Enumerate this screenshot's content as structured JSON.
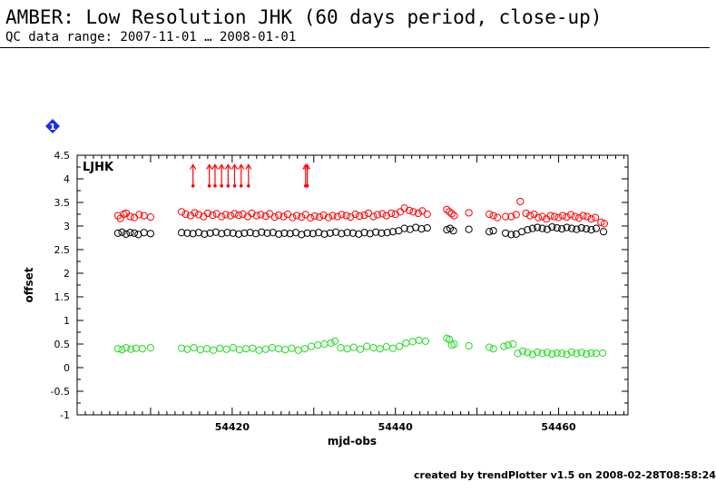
{
  "header": {
    "title": "AMBER: Low Resolution JHK (60 days period, close-up)",
    "subtitle": "QC data range: 2007-11-01 … 2008-01-01"
  },
  "badge": {
    "label": "1",
    "icon": "diamond-icon",
    "color": "#1a2ee8"
  },
  "footer": {
    "text": "created by trendPlotter v1.5 on 2008-02-28T08:58:24"
  },
  "chart_data": {
    "type": "scatter",
    "panel_label": "LJHK",
    "xlabel": "mjd-obs",
    "ylabel": "offset",
    "xlim": [
      54401,
      54468.5
    ],
    "ylim": [
      -1,
      4.5
    ],
    "xticks": [
      54420,
      54440,
      54460
    ],
    "yticks": [
      "-1",
      "-0.5",
      "0",
      "0.5",
      "1",
      "1.5",
      "2",
      "2.5",
      "3",
      "3.5",
      "4",
      "4.5"
    ],
    "grid": false,
    "series": [
      {
        "color": "#ff0000",
        "x": [
          54406.0,
          54406.3,
          54406.7,
          54407.0,
          54407.5,
          54408.0,
          54408.6,
          54409.2,
          54410.0,
          54413.8,
          54414.3,
          54414.9,
          54415.4,
          54415.9,
          54416.5,
          54417.0,
          54417.6,
          54418.1,
          54418.7,
          54419.2,
          54419.8,
          54420.3,
          54420.8,
          54421.3,
          54421.9,
          54422.4,
          54423.0,
          54423.5,
          54424.1,
          54424.6,
          54425.2,
          54425.7,
          54426.3,
          54426.8,
          54427.4,
          54427.9,
          54428.5,
          54429.0,
          54429.6,
          54430.1,
          54430.7,
          54431.2,
          54431.8,
          54432.3,
          54432.9,
          54433.4,
          54434.0,
          54434.5,
          54435.1,
          54435.6,
          54436.2,
          54436.7,
          54437.3,
          54437.8,
          54438.4,
          54438.9,
          54439.5,
          54440.0,
          54440.6,
          54441.1,
          54441.7,
          54442.2,
          54442.8,
          54443.3,
          54443.9,
          54446.3,
          54446.6,
          54446.9,
          54447.2,
          54449.0,
          54451.5,
          54452.0,
          54452.5,
          54453.5,
          54454.2,
          54454.8,
          54455.3,
          54456.0,
          54456.5,
          54457.0,
          54457.5,
          54458.0,
          54458.5,
          54459.0,
          54459.5,
          54460.0,
          54460.5,
          54461.0,
          54461.5,
          54462.0,
          54462.5,
          54463.0,
          54463.5,
          54464.0,
          54464.5,
          54465.2,
          54465.6
        ],
        "y": [
          3.22,
          3.16,
          3.25,
          3.27,
          3.2,
          3.18,
          3.24,
          3.22,
          3.19,
          3.3,
          3.25,
          3.22,
          3.28,
          3.24,
          3.2,
          3.27,
          3.23,
          3.26,
          3.2,
          3.24,
          3.22,
          3.26,
          3.23,
          3.25,
          3.2,
          3.27,
          3.22,
          3.24,
          3.21,
          3.26,
          3.19,
          3.23,
          3.2,
          3.25,
          3.18,
          3.22,
          3.19,
          3.24,
          3.17,
          3.21,
          3.19,
          3.23,
          3.18,
          3.22,
          3.2,
          3.24,
          3.22,
          3.19,
          3.25,
          3.21,
          3.23,
          3.27,
          3.2,
          3.24,
          3.26,
          3.22,
          3.27,
          3.25,
          3.3,
          3.38,
          3.33,
          3.3,
          3.27,
          3.32,
          3.25,
          3.35,
          3.3,
          3.26,
          3.22,
          3.28,
          3.25,
          3.22,
          3.18,
          3.2,
          3.2,
          3.24,
          3.52,
          3.27,
          3.22,
          3.25,
          3.18,
          3.2,
          3.15,
          3.22,
          3.2,
          3.18,
          3.22,
          3.19,
          3.24,
          3.2,
          3.17,
          3.22,
          3.2,
          3.15,
          3.18,
          3.08,
          3.05
        ]
      },
      {
        "color": "#000000",
        "x": [
          54406.0,
          54406.5,
          54407.0,
          54407.5,
          54408.0,
          54408.5,
          54409.2,
          54410.0,
          54413.8,
          54414.5,
          54415.2,
          54415.9,
          54416.6,
          54417.3,
          54418.0,
          54418.7,
          54419.4,
          54420.1,
          54420.8,
          54421.5,
          54422.2,
          54422.9,
          54423.6,
          54424.3,
          54425.0,
          54425.7,
          54426.4,
          54427.1,
          54427.8,
          54428.5,
          54429.2,
          54429.9,
          54430.6,
          54431.3,
          54432.0,
          54432.7,
          54433.4,
          54434.1,
          54434.8,
          54435.5,
          54436.2,
          54436.9,
          54437.6,
          54438.3,
          54439.0,
          54439.7,
          54440.4,
          54441.1,
          54441.8,
          54442.5,
          54443.2,
          54443.9,
          54446.3,
          54446.7,
          54447.1,
          54449.0,
          54451.5,
          54452.0,
          54453.5,
          54454.2,
          54454.8,
          54455.5,
          54456.2,
          54456.8,
          54457.4,
          54458.0,
          54458.6,
          54459.2,
          54459.8,
          54460.4,
          54461.0,
          54461.6,
          54462.2,
          54462.8,
          54463.4,
          54464.0,
          54464.6,
          54465.5
        ],
        "y": [
          2.85,
          2.87,
          2.83,
          2.86,
          2.85,
          2.82,
          2.86,
          2.84,
          2.86,
          2.85,
          2.84,
          2.86,
          2.83,
          2.85,
          2.87,
          2.84,
          2.86,
          2.85,
          2.83,
          2.85,
          2.86,
          2.84,
          2.87,
          2.85,
          2.86,
          2.83,
          2.85,
          2.84,
          2.86,
          2.82,
          2.85,
          2.84,
          2.86,
          2.83,
          2.85,
          2.87,
          2.84,
          2.86,
          2.85,
          2.83,
          2.86,
          2.84,
          2.87,
          2.85,
          2.86,
          2.88,
          2.9,
          2.95,
          2.93,
          2.97,
          2.94,
          2.96,
          2.92,
          2.95,
          2.9,
          2.93,
          2.88,
          2.9,
          2.85,
          2.82,
          2.83,
          2.88,
          2.92,
          2.95,
          2.97,
          2.95,
          2.93,
          2.98,
          2.96,
          2.94,
          2.97,
          2.95,
          2.93,
          2.96,
          2.94,
          2.92,
          2.95,
          2.88
        ]
      },
      {
        "color": "#22dd22",
        "x": [
          54406.0,
          54406.5,
          54407.0,
          54407.6,
          54408.2,
          54409.0,
          54410.0,
          54413.8,
          54414.5,
          54415.3,
          54416.1,
          54416.9,
          54417.7,
          54418.5,
          54419.3,
          54420.1,
          54420.9,
          54421.7,
          54422.5,
          54423.3,
          54424.1,
          54424.9,
          54425.7,
          54426.5,
          54427.3,
          54428.1,
          54428.9,
          54429.7,
          54430.5,
          54431.3,
          54432.1,
          54432.6,
          54433.3,
          54434.1,
          54434.9,
          54435.7,
          54436.5,
          54437.3,
          54438.1,
          54438.9,
          54439.7,
          54440.5,
          54441.3,
          54442.1,
          54442.9,
          54443.7,
          54446.3,
          54446.6,
          54446.9,
          54447.2,
          54449.0,
          54451.5,
          54452.0,
          54453.3,
          54453.8,
          54454.4,
          54455.0,
          54455.6,
          54456.2,
          54456.8,
          54457.4,
          54458.0,
          54458.6,
          54459.2,
          54459.8,
          54460.4,
          54461.0,
          54461.6,
          54462.2,
          54462.8,
          54463.4,
          54464.0,
          54464.6,
          54465.4
        ],
        "y": [
          0.4,
          0.38,
          0.42,
          0.39,
          0.41,
          0.4,
          0.42,
          0.41,
          0.39,
          0.42,
          0.38,
          0.4,
          0.37,
          0.41,
          0.39,
          0.42,
          0.38,
          0.4,
          0.41,
          0.37,
          0.39,
          0.42,
          0.4,
          0.38,
          0.41,
          0.37,
          0.4,
          0.45,
          0.48,
          0.5,
          0.52,
          0.56,
          0.42,
          0.4,
          0.43,
          0.39,
          0.45,
          0.42,
          0.4,
          0.44,
          0.41,
          0.45,
          0.52,
          0.55,
          0.58,
          0.56,
          0.62,
          0.6,
          0.48,
          0.5,
          0.46,
          0.43,
          0.4,
          0.45,
          0.48,
          0.5,
          0.3,
          0.35,
          0.32,
          0.28,
          0.33,
          0.3,
          0.32,
          0.29,
          0.31,
          0.3,
          0.28,
          0.33,
          0.3,
          0.32,
          0.29,
          0.31,
          0.3,
          0.31
        ]
      }
    ],
    "markers": {
      "color": "#ff0000",
      "x": [
        54415.2,
        54417.2,
        54417.9,
        54418.7,
        54419.5,
        54420.3,
        54421.1,
        54422.0,
        54429.0,
        54429.2
      ]
    }
  }
}
